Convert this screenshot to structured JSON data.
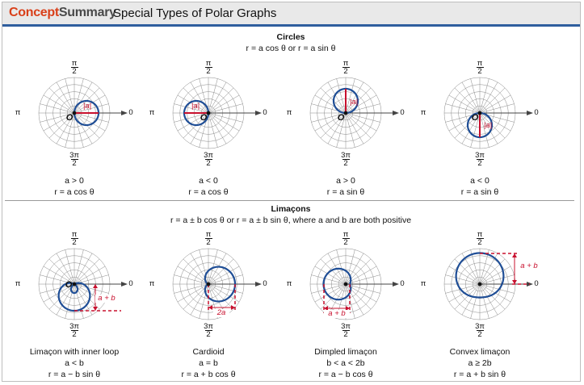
{
  "header": {
    "brand_part1": "Concept",
    "brand_part2": "Summary",
    "title": "Special Types of Polar Graphs"
  },
  "circles": {
    "title": "Circles",
    "formula": "r = a cos θ or r = a sin θ",
    "graphs": [
      {
        "cond": "a > 0",
        "eq": "r = a cos θ",
        "radius_label": "|a|"
      },
      {
        "cond": "a < 0",
        "eq": "r = a cos θ",
        "radius_label": "|a|"
      },
      {
        "cond": "a > 0",
        "eq": "r = a sin θ",
        "radius_label": "|a|"
      },
      {
        "cond": "a < 0",
        "eq": "r = a sin θ",
        "radius_label": "|a|"
      }
    ]
  },
  "limacons": {
    "title": "Limaçons",
    "formula": "r = a ± b cos θ or r = a ± b sin θ, where a and b are both positive",
    "graphs": [
      {
        "name": "Limaçon with inner loop",
        "cond": "a < b",
        "eq": "r = a − b sin θ",
        "dim_label": "a + b"
      },
      {
        "name": "Cardioid",
        "cond": "a = b",
        "eq": "r = a + b cos θ",
        "dim_label": "2a"
      },
      {
        "name": "Dimpled limaçon",
        "cond": "b < a < 2b",
        "eq": "r = a − b cos θ",
        "dim_label": "a + b"
      },
      {
        "name": "Convex limaçon",
        "cond": "a ≥ 2b",
        "eq": "r = a + b sin θ",
        "dim_label": "a + b"
      }
    ]
  },
  "axis_labels": {
    "pi": "π",
    "zero": "0",
    "origin": "O",
    "half_num": "π",
    "half_den": "2",
    "three_half_num": "3π",
    "three_half_den": "2"
  },
  "colors": {
    "curve": "#1f4e96",
    "accent": "#c8102e",
    "grid": "#888888",
    "brand": "#d9401a",
    "rule": "#2f5e9e"
  }
}
